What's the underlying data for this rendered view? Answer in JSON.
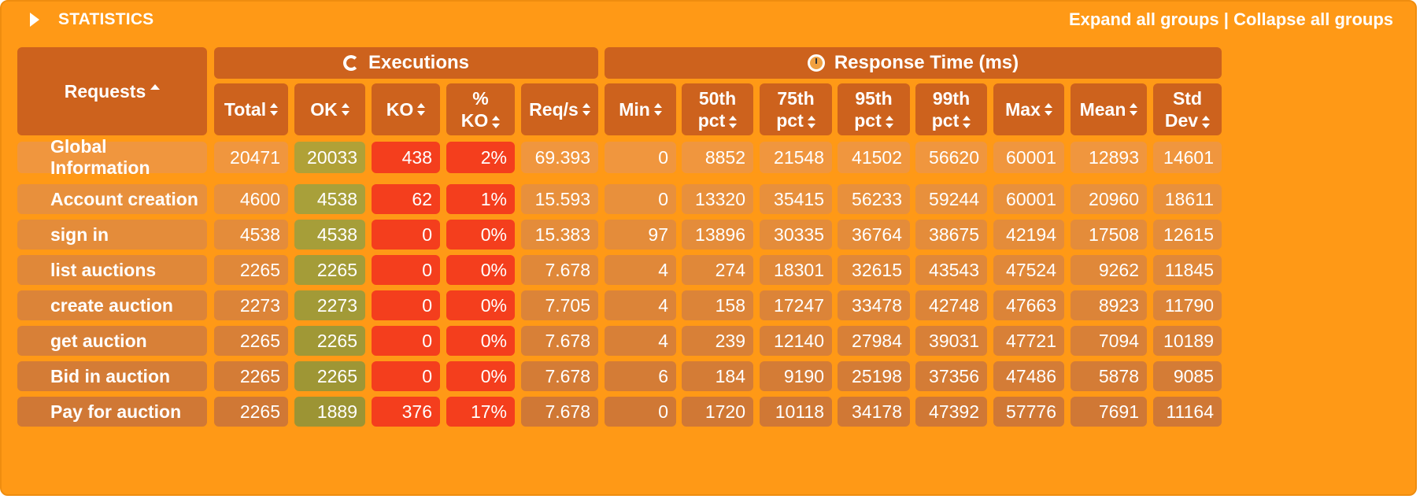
{
  "header": {
    "title": "STATISTICS",
    "expand_label": "Expand all groups",
    "separator": "|",
    "collapse_label": "Collapse all groups"
  },
  "groups": {
    "executions": "Executions",
    "response_time": "Response Time (ms)"
  },
  "columns": {
    "requests": "Requests",
    "total": "Total",
    "ok": "OK",
    "ko": "KO",
    "pct_ko_1": "%",
    "pct_ko_2": "KO",
    "req_s": "Req/s",
    "min": "Min",
    "p50_1": "50th",
    "p50_2": "pct",
    "p75_1": "75th",
    "p75_2": "pct",
    "p95_1": "95th",
    "p95_2": "pct",
    "p99_1": "99th",
    "p99_2": "pct",
    "max": "Max",
    "mean": "Mean",
    "std_1": "Std",
    "std_2": "Dev"
  },
  "global": {
    "name": "Global Information",
    "values": [
      "20471",
      "20033",
      "438",
      "2%",
      "69.393",
      "0",
      "8852",
      "21548",
      "41502",
      "56620",
      "60001",
      "12893",
      "14601"
    ]
  },
  "rows": [
    {
      "name": "Account creation",
      "values": [
        "4600",
        "4538",
        "62",
        "1%",
        "15.593",
        "0",
        "13320",
        "35415",
        "56233",
        "59244",
        "60001",
        "20960",
        "18611"
      ]
    },
    {
      "name": "sign in",
      "values": [
        "4538",
        "4538",
        "0",
        "0%",
        "15.383",
        "97",
        "13896",
        "30335",
        "36764",
        "38675",
        "42194",
        "17508",
        "12615"
      ]
    },
    {
      "name": "list auctions",
      "values": [
        "2265",
        "2265",
        "0",
        "0%",
        "7.678",
        "4",
        "274",
        "18301",
        "32615",
        "43543",
        "47524",
        "9262",
        "11845"
      ]
    },
    {
      "name": "create auction",
      "values": [
        "2273",
        "2273",
        "0",
        "0%",
        "7.705",
        "4",
        "158",
        "17247",
        "33478",
        "42748",
        "47663",
        "8923",
        "11790"
      ]
    },
    {
      "name": "get auction",
      "values": [
        "2265",
        "2265",
        "0",
        "0%",
        "7.678",
        "4",
        "239",
        "12140",
        "27984",
        "39031",
        "47721",
        "7094",
        "10189"
      ]
    },
    {
      "name": "Bid in auction",
      "values": [
        "2265",
        "2265",
        "0",
        "0%",
        "7.678",
        "6",
        "184",
        "9190",
        "25198",
        "37356",
        "47486",
        "5878",
        "9085"
      ]
    },
    {
      "name": "Pay for auction",
      "values": [
        "2265",
        "1889",
        "376",
        "17%",
        "7.678",
        "0",
        "1720",
        "10118",
        "34178",
        "47392",
        "57776",
        "7691",
        "11164"
      ]
    }
  ],
  "colors": {
    "panel": "#ff9916",
    "header_cell": "#cd621d",
    "ok_cell": "#a3a22c",
    "ko_cell": "#f43e1d",
    "ok_cell_highlight": "#b8a23a"
  }
}
